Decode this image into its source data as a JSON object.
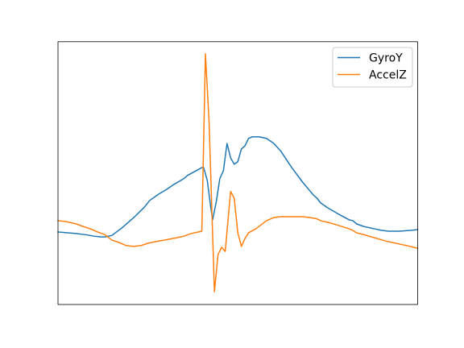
{
  "chart_data": {
    "type": "line",
    "title": "",
    "xlabel": "",
    "ylabel": "",
    "grid": false,
    "axes_ticks_visible": false,
    "legend_position": "top-right",
    "xlim": [
      0,
      100
    ],
    "ylim": [
      0,
      100
    ],
    "series": [
      {
        "name": "GyroY",
        "color": "#1f77b4",
        "points": [
          [
            0,
            27.6
          ],
          [
            5,
            27.0
          ],
          [
            8,
            26.5
          ],
          [
            10,
            26.0
          ],
          [
            12,
            25.7
          ],
          [
            13,
            25.7
          ],
          [
            15,
            26.3
          ],
          [
            18,
            29.4
          ],
          [
            21,
            33.0
          ],
          [
            24,
            37.0
          ],
          [
            25.5,
            39.6
          ],
          [
            28,
            42.0
          ],
          [
            30,
            43.6
          ],
          [
            32,
            45.5
          ],
          [
            35,
            47.9
          ],
          [
            36,
            49.1
          ],
          [
            38,
            50.6
          ],
          [
            40,
            52.1
          ],
          [
            40.5,
            52.1
          ],
          [
            41.5,
            47.3
          ],
          [
            42.5,
            36.8
          ],
          [
            43,
            32.3
          ],
          [
            44,
            39.0
          ],
          [
            45,
            47.9
          ],
          [
            46,
            50.9
          ],
          [
            47,
            61.3
          ],
          [
            48,
            55.8
          ],
          [
            49,
            53.4
          ],
          [
            50,
            54.3
          ],
          [
            51,
            59.2
          ],
          [
            52,
            60.4
          ],
          [
            53,
            63.2
          ],
          [
            54,
            63.8
          ],
          [
            56,
            63.8
          ],
          [
            58,
            63.2
          ],
          [
            60,
            61.3
          ],
          [
            62,
            58.3
          ],
          [
            65,
            52.1
          ],
          [
            68,
            46.6
          ],
          [
            71,
            41.7
          ],
          [
            72,
            40.5
          ],
          [
            73,
            38.7
          ],
          [
            75,
            36.8
          ],
          [
            78,
            34.4
          ],
          [
            81,
            32.2
          ],
          [
            82,
            31.9
          ],
          [
            83,
            30.7
          ],
          [
            85,
            29.7
          ],
          [
            88,
            28.8
          ],
          [
            90,
            28.2
          ],
          [
            92,
            27.9
          ],
          [
            95,
            27.9
          ],
          [
            98,
            28.2
          ],
          [
            100,
            28.5
          ]
        ]
      },
      {
        "name": "AccelZ",
        "color": "#ff7f0e",
        "points": [
          [
            0,
            31.9
          ],
          [
            2,
            31.6
          ],
          [
            5,
            30.7
          ],
          [
            7,
            29.7
          ],
          [
            9,
            28.8
          ],
          [
            11,
            27.6
          ],
          [
            13,
            26.6
          ],
          [
            15,
            24.5
          ],
          [
            17,
            23.6
          ],
          [
            19,
            22.4
          ],
          [
            21,
            22.1
          ],
          [
            23,
            22.4
          ],
          [
            25,
            23.3
          ],
          [
            27,
            23.9
          ],
          [
            30,
            24.6
          ],
          [
            33,
            25.4
          ],
          [
            35,
            26.0
          ],
          [
            37,
            27.0
          ],
          [
            39,
            27.6
          ],
          [
            40,
            27.9
          ],
          [
            41,
            95.4
          ],
          [
            42,
            69.9
          ],
          [
            43.5,
            4.9
          ],
          [
            44.5,
            19.0
          ],
          [
            45.5,
            21.8
          ],
          [
            46.5,
            20.2
          ],
          [
            48,
            43.0
          ],
          [
            49,
            40.5
          ],
          [
            50,
            27.3
          ],
          [
            51,
            22.1
          ],
          [
            52,
            25.1
          ],
          [
            53,
            27.3
          ],
          [
            55,
            28.8
          ],
          [
            58,
            31.9
          ],
          [
            60,
            33.1
          ],
          [
            62,
            33.4
          ],
          [
            65,
            33.4
          ],
          [
            68,
            33.4
          ],
          [
            70,
            33.1
          ],
          [
            72,
            32.6
          ],
          [
            73,
            31.9
          ],
          [
            75,
            31.3
          ],
          [
            78,
            30.1
          ],
          [
            81,
            28.8
          ],
          [
            82,
            28.2
          ],
          [
            83,
            27.3
          ],
          [
            85,
            26.6
          ],
          [
            88,
            25.4
          ],
          [
            91,
            24.2
          ],
          [
            94,
            23.3
          ],
          [
            97,
            22.4
          ],
          [
            100,
            21.4
          ]
        ]
      }
    ]
  }
}
